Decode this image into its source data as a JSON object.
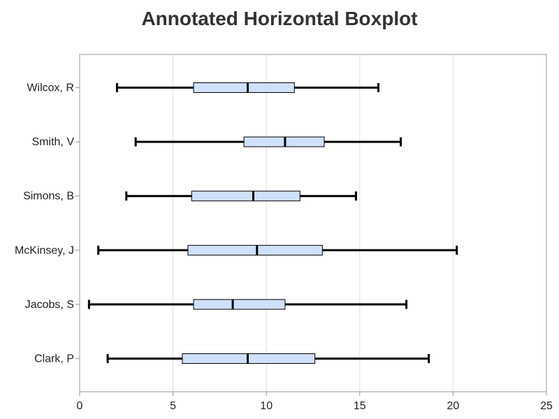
{
  "chart_data": {
    "type": "boxplot",
    "orientation": "horizontal",
    "title": "Annotated Horizontal Boxplot",
    "xlabel": "",
    "ylabel": "",
    "xlim": [
      0,
      25
    ],
    "xticks": [
      0,
      5,
      10,
      15,
      20,
      25
    ],
    "grid": true,
    "categories": [
      "Wilcox, R",
      "Smith, V",
      "Simons, B",
      "McKinsey, J",
      "Jacobs, S",
      "Clark, P"
    ],
    "boxes": [
      {
        "min": 2.0,
        "q1": 6.1,
        "median": 9.0,
        "q3": 11.5,
        "max": 16.0
      },
      {
        "min": 3.0,
        "q1": 8.8,
        "median": 11.0,
        "q3": 13.1,
        "max": 17.2
      },
      {
        "min": 2.5,
        "q1": 6.0,
        "median": 9.3,
        "q3": 11.8,
        "max": 14.8
      },
      {
        "min": 1.0,
        "q1": 5.8,
        "median": 9.5,
        "q3": 13.0,
        "max": 20.2
      },
      {
        "min": 0.5,
        "q1": 6.1,
        "median": 8.2,
        "q3": 11.0,
        "max": 17.5
      },
      {
        "min": 1.5,
        "q1": 5.5,
        "median": 9.0,
        "q3": 12.6,
        "max": 18.7
      }
    ],
    "colors": {
      "box_fill": "#cfe0fa",
      "box_stroke": "#000000",
      "whisker": "#000000",
      "grid": "#dddddd",
      "axis": "#9a9a9a"
    }
  }
}
